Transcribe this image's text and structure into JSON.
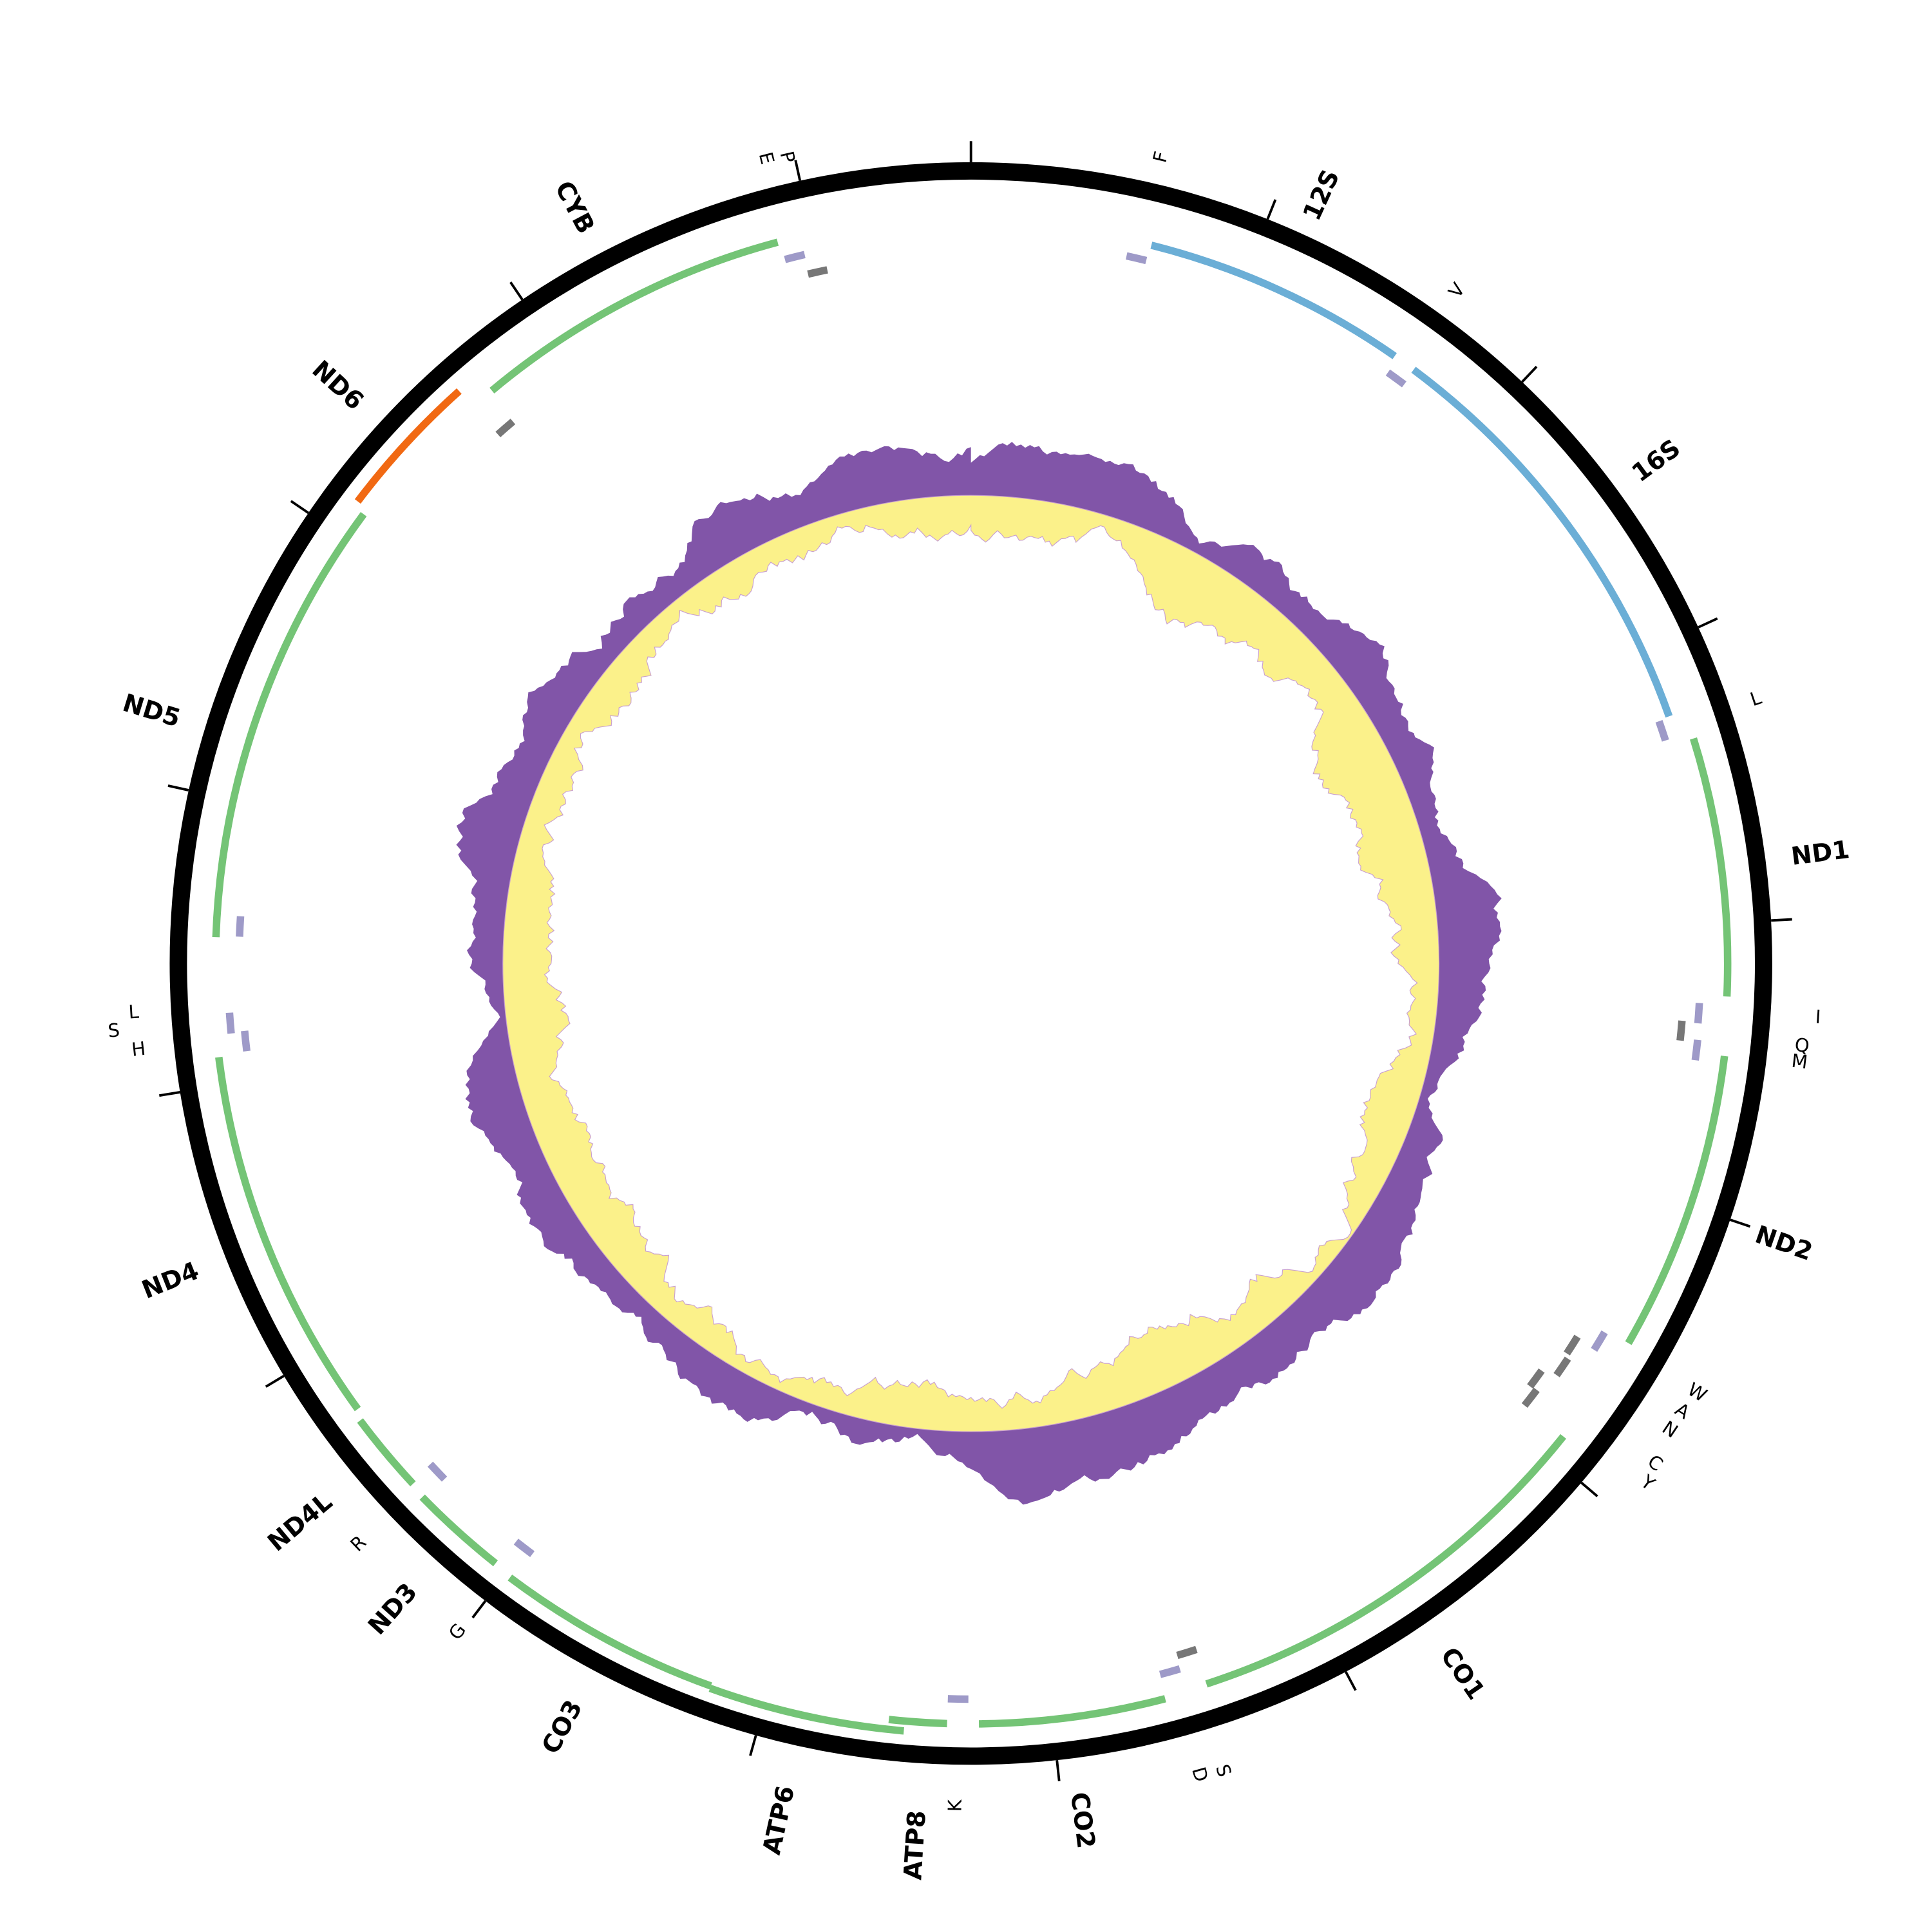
{
  "labels": [
    "F",
    "12S",
    "V",
    "16S",
    "L",
    "ND1",
    "I",
    "Q",
    "M",
    "ND2",
    "W",
    "A",
    "N",
    "C",
    "Y",
    "CO1",
    "S",
    "D",
    "CO2",
    "K",
    "ATP8",
    "ATP6",
    "CO3",
    "G",
    "ND3",
    "R",
    "ND4L",
    "ND4",
    "H",
    "S",
    "L",
    "ND5",
    "ND6",
    "CYB",
    "E",
    "P"
  ]
}
